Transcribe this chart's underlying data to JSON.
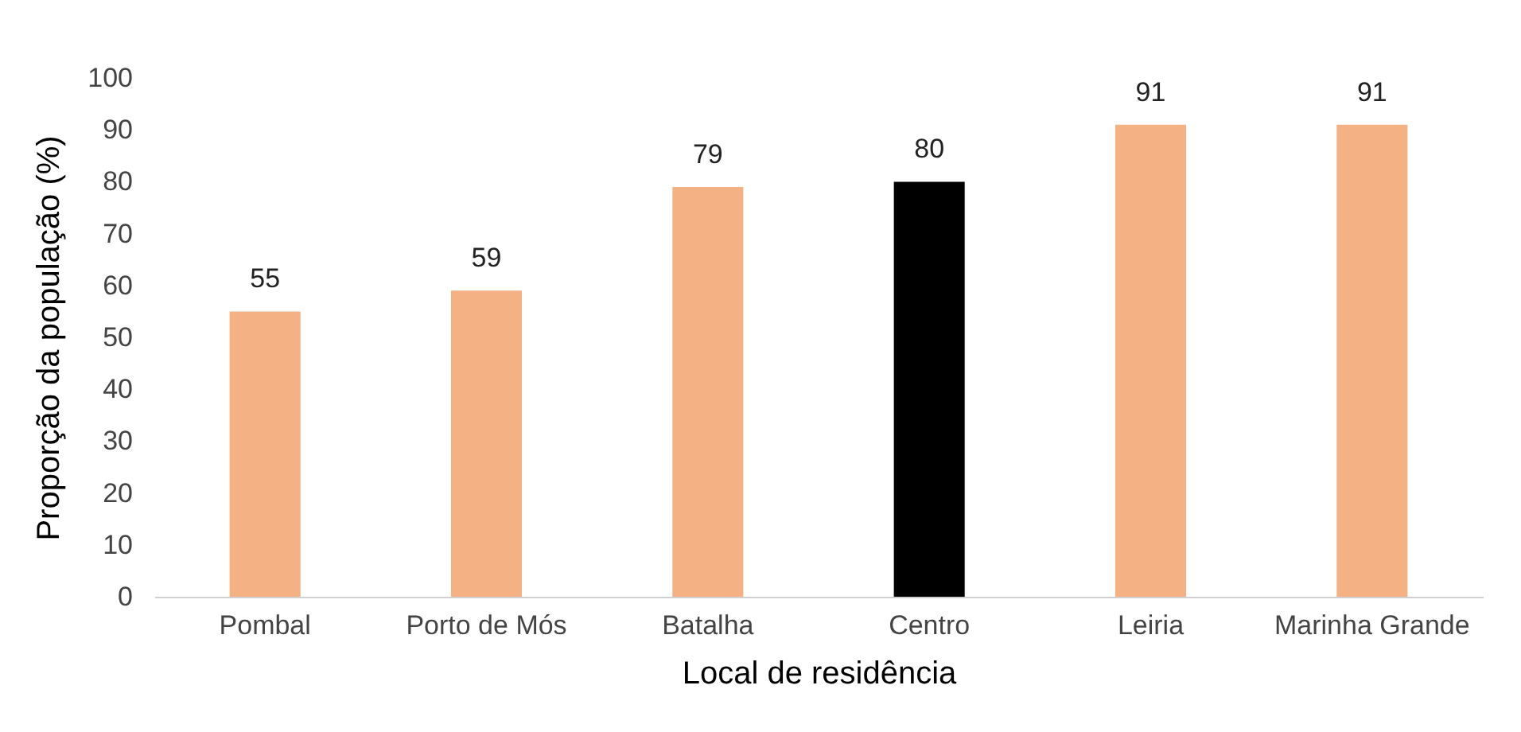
{
  "chart_data": {
    "type": "bar",
    "xlabel": "Local de residência",
    "ylabel": "Proporção da população (%)",
    "categories": [
      "Pombal",
      "Porto de Mós",
      "Batalha",
      "Centro",
      "Leiria",
      "Marinha Grande"
    ],
    "values": [
      55,
      59,
      79,
      80,
      91,
      91
    ],
    "colors": [
      "#f4b183",
      "#f4b183",
      "#f4b183",
      "#000000",
      "#f4b183",
      "#f4b183"
    ],
    "ylim": [
      0,
      100
    ],
    "yticks": [
      0,
      10,
      20,
      30,
      40,
      50,
      60,
      70,
      80,
      90,
      100
    ],
    "grid": false,
    "data_labels": true
  }
}
